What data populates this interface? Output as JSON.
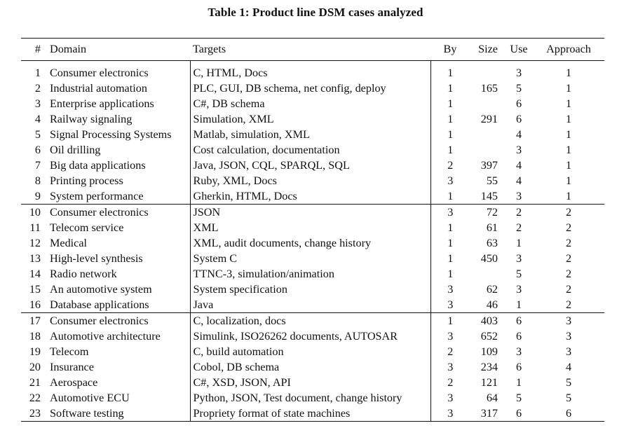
{
  "caption": "Table 1: Product line DSM cases analyzed",
  "headers": {
    "num": "#",
    "domain": "Domain",
    "targets": "Targets",
    "by": "By",
    "size": "Size",
    "use": "Use",
    "approach": "Approach"
  },
  "rows": [
    {
      "num": "1",
      "domain": "Consumer electronics",
      "targets": "C, HTML, Docs",
      "by": "1",
      "size": "",
      "use": "3",
      "approach": "1"
    },
    {
      "num": "2",
      "domain": "Industrial automation",
      "targets": "PLC, GUI, DB schema, net config, deploy",
      "by": "1",
      "size": "165",
      "use": "5",
      "approach": "1"
    },
    {
      "num": "3",
      "domain": "Enterprise applications",
      "targets": "C#, DB schema",
      "by": "1",
      "size": "",
      "use": "6",
      "approach": "1"
    },
    {
      "num": "4",
      "domain": "Railway signaling",
      "targets": "Simulation, XML",
      "by": "1",
      "size": "291",
      "use": "6",
      "approach": "1"
    },
    {
      "num": "5",
      "domain": "Signal Processing Systems",
      "targets": "Matlab, simulation, XML",
      "by": "1",
      "size": "",
      "use": "4",
      "approach": "1"
    },
    {
      "num": "6",
      "domain": "Oil drilling",
      "targets": "Cost calculation, documentation",
      "by": "1",
      "size": "",
      "use": "3",
      "approach": "1"
    },
    {
      "num": "7",
      "domain": "Big data applications",
      "targets": "Java, JSON, CQL, SPARQL, SQL",
      "by": "2",
      "size": "397",
      "use": "4",
      "approach": "1"
    },
    {
      "num": "8",
      "domain": "Printing process",
      "targets": "Ruby, XML, Docs",
      "by": "3",
      "size": "55",
      "use": "4",
      "approach": "1"
    },
    {
      "num": "9",
      "domain": "System performance",
      "targets": "Gherkin, HTML, Docs",
      "by": "1",
      "size": "145",
      "use": "3",
      "approach": "1"
    },
    {
      "num": "10",
      "domain": "Consumer electronics",
      "targets": "JSON",
      "by": "3",
      "size": "72",
      "use": "2",
      "approach": "2"
    },
    {
      "num": "11",
      "domain": "Telecom service",
      "targets": "XML",
      "by": "1",
      "size": "61",
      "use": "2",
      "approach": "2"
    },
    {
      "num": "12",
      "domain": "Medical",
      "targets": "XML, audit documents, change history",
      "by": "1",
      "size": "63",
      "use": "1",
      "approach": "2"
    },
    {
      "num": "13",
      "domain": "High-level synthesis",
      "targets": "System C",
      "by": "1",
      "size": "450",
      "use": "3",
      "approach": "2"
    },
    {
      "num": "14",
      "domain": "Radio network",
      "targets": "TTNC-3, simulation/animation",
      "by": "1",
      "size": "",
      "use": "5",
      "approach": "2"
    },
    {
      "num": "15",
      "domain": "An automotive system",
      "targets": "System specification",
      "by": "3",
      "size": "62",
      "use": "3",
      "approach": "2"
    },
    {
      "num": "16",
      "domain": "Database applications",
      "targets": "Java",
      "by": "3",
      "size": "46",
      "use": "1",
      "approach": "2"
    },
    {
      "num": "17",
      "domain": "Consumer electronics",
      "targets": "C, localization, docs",
      "by": "1",
      "size": "403",
      "use": "6",
      "approach": "3"
    },
    {
      "num": "18",
      "domain": "Automotive architecture",
      "targets": "Simulink, ISO26262 documents, AUTOSAR",
      "by": "3",
      "size": "652",
      "use": "6",
      "approach": "3"
    },
    {
      "num": "19",
      "domain": "Telecom",
      "targets": "C, build automation",
      "by": "2",
      "size": "109",
      "use": "3",
      "approach": "3"
    },
    {
      "num": "20",
      "domain": "Insurance",
      "targets": "Cobol, DB schema",
      "by": "3",
      "size": "234",
      "use": "6",
      "approach": "4"
    },
    {
      "num": "21",
      "domain": "Aerospace",
      "targets": "C#, XSD, JSON, API",
      "by": "2",
      "size": "121",
      "use": "1",
      "approach": "5"
    },
    {
      "num": "22",
      "domain": "Automotive ECU",
      "targets": "Python, JSON, Test document, change history",
      "by": "3",
      "size": "64",
      "use": "5",
      "approach": "5"
    },
    {
      "num": "23",
      "domain": "Software testing",
      "targets": "Propriety format of state machines",
      "by": "3",
      "size": "317",
      "use": "6",
      "approach": "6"
    }
  ]
}
